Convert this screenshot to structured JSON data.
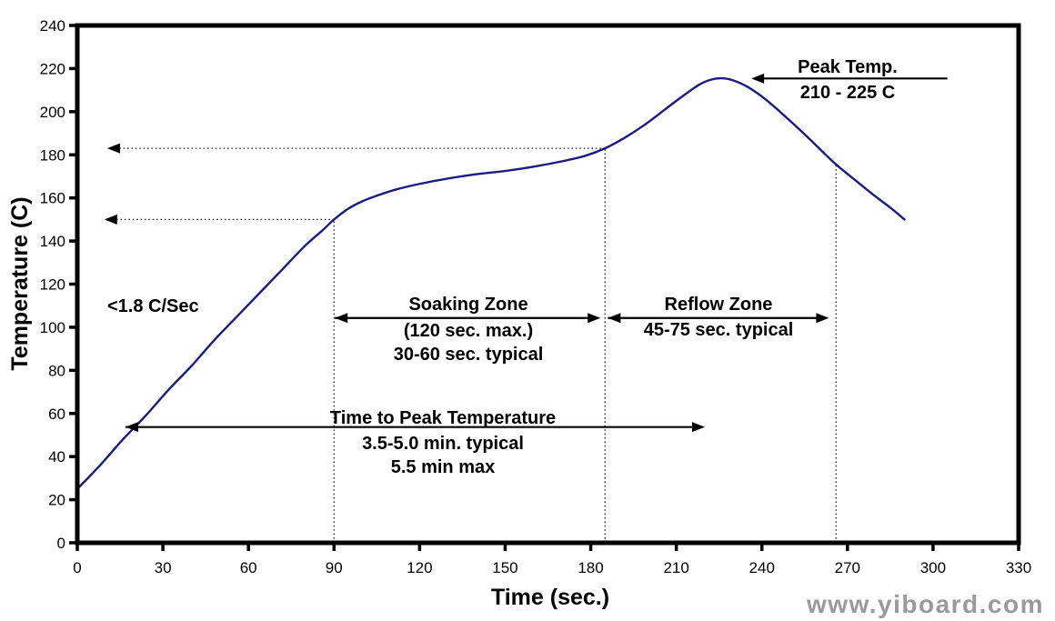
{
  "chart_data": {
    "type": "line",
    "title": "",
    "xlabel": "Time (sec.)",
    "ylabel": "Temperature (C)",
    "xlim": [
      0,
      330
    ],
    "ylim": [
      0,
      240
    ],
    "x_ticks": [
      0,
      30,
      60,
      90,
      120,
      150,
      180,
      210,
      240,
      270,
      300,
      330
    ],
    "y_ticks": [
      0,
      20,
      40,
      60,
      80,
      100,
      120,
      140,
      160,
      180,
      200,
      220,
      240
    ],
    "grid": "off",
    "series": [
      {
        "name": "reflow-temperature-profile",
        "color": "#1b1b80",
        "points": [
          [
            0,
            25
          ],
          [
            8,
            36
          ],
          [
            16,
            48
          ],
          [
            24,
            59
          ],
          [
            32,
            71
          ],
          [
            40,
            82
          ],
          [
            48,
            94
          ],
          [
            56,
            105
          ],
          [
            64,
            116
          ],
          [
            72,
            127
          ],
          [
            80,
            138
          ],
          [
            86,
            145
          ],
          [
            90,
            150
          ],
          [
            95,
            155
          ],
          [
            100,
            158.5
          ],
          [
            106,
            161.5
          ],
          [
            112,
            164
          ],
          [
            120,
            166.5
          ],
          [
            130,
            169
          ],
          [
            140,
            171
          ],
          [
            150,
            172.5
          ],
          [
            160,
            174.5
          ],
          [
            170,
            177
          ],
          [
            178,
            179.5
          ],
          [
            185,
            183
          ],
          [
            192,
            188
          ],
          [
            199,
            194
          ],
          [
            206,
            201
          ],
          [
            212,
            207
          ],
          [
            218,
            212.5
          ],
          [
            222,
            214.8
          ],
          [
            226,
            215.5
          ],
          [
            230,
            214.5
          ],
          [
            235,
            211.5
          ],
          [
            241,
            206
          ],
          [
            248,
            198
          ],
          [
            255,
            189.5
          ],
          [
            262,
            180.5
          ],
          [
            266,
            175.5
          ],
          [
            272,
            169
          ],
          [
            279,
            161.5
          ],
          [
            285,
            155.5
          ],
          [
            290,
            150
          ]
        ]
      }
    ],
    "v_guides": [
      {
        "x": 90,
        "y_top": 150
      },
      {
        "x": 185,
        "y_top": 183
      },
      {
        "x": 266,
        "y_top": 175
      }
    ],
    "h_guides": [
      {
        "y": 183,
        "x_from": 185,
        "x_tip": 10.5
      },
      {
        "y": 150,
        "x_from": 90,
        "x_tip": 9.5
      }
    ],
    "arrows": [
      {
        "name": "peak-temp-arrow",
        "y": 215.4,
        "x_from": 305,
        "x_to": 236.3,
        "double": false
      },
      {
        "name": "soaking-zone-arrow",
        "y": 104.3,
        "x_from": 90.3,
        "x_to": 183.4,
        "double": true
      },
      {
        "name": "reflow-zone-arrow",
        "y": 104.3,
        "x_from": 186,
        "x_to": 263.5,
        "double": true
      },
      {
        "name": "time-to-peak-arrow",
        "y": 53.7,
        "x_from": 16.9,
        "x_to": 220,
        "double": true
      }
    ],
    "annotations": {
      "ramp_rate": {
        "text": "<1.8 C/Sec"
      },
      "soaking_zone": {
        "title": "Soaking Zone",
        "line2": "(120 sec. max.)",
        "line3": "30-60 sec. typical"
      },
      "reflow_zone": {
        "title": "Reflow Zone",
        "line2": "45-75 sec. typical"
      },
      "peak_temp": {
        "title": "Peak Temp.",
        "line2": "210 - 225 C"
      },
      "time_to_peak": {
        "title": "Time to Peak Temperature",
        "line2": "3.5-5.0 min. typical",
        "line3": "5.5 min max"
      }
    }
  },
  "watermark": "www.yiboard.com",
  "colors": {
    "curve": "#1b1b80",
    "axis": "#000000",
    "guide": "#2a2a2a",
    "watermark": "#9a9a9a"
  }
}
